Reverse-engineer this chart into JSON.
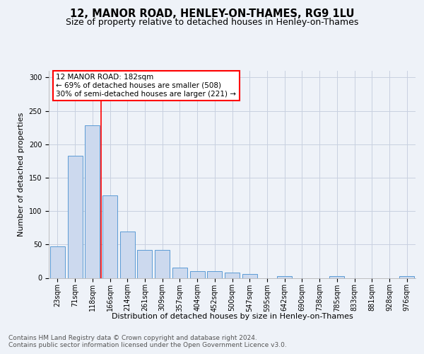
{
  "title": "12, MANOR ROAD, HENLEY-ON-THAMES, RG9 1LU",
  "subtitle": "Size of property relative to detached houses in Henley-on-Thames",
  "xlabel": "Distribution of detached houses by size in Henley-on-Thames",
  "ylabel": "Number of detached properties",
  "categories": [
    "23sqm",
    "71sqm",
    "118sqm",
    "166sqm",
    "214sqm",
    "261sqm",
    "309sqm",
    "357sqm",
    "404sqm",
    "452sqm",
    "500sqm",
    "547sqm",
    "595sqm",
    "642sqm",
    "690sqm",
    "738sqm",
    "785sqm",
    "833sqm",
    "881sqm",
    "928sqm",
    "976sqm"
  ],
  "values": [
    47,
    183,
    228,
    124,
    69,
    42,
    42,
    15,
    10,
    10,
    8,
    6,
    0,
    3,
    0,
    0,
    3,
    0,
    0,
    0,
    3
  ],
  "bar_color": "#ccd9ee",
  "bar_edge_color": "#5b9bd5",
  "grid_color": "#c8d0e0",
  "background_color": "#eef2f8",
  "vline_color": "red",
  "vline_position": 2.5,
  "annotation_text": "12 MANOR ROAD: 182sqm\n← 69% of detached houses are smaller (508)\n30% of semi-detached houses are larger (221) →",
  "footer_line1": "Contains HM Land Registry data © Crown copyright and database right 2024.",
  "footer_line2": "Contains public sector information licensed under the Open Government Licence v3.0.",
  "ylim": [
    0,
    310
  ],
  "yticks": [
    0,
    50,
    100,
    150,
    200,
    250,
    300
  ],
  "title_fontsize": 10.5,
  "subtitle_fontsize": 9,
  "axis_label_fontsize": 8,
  "tick_fontsize": 7,
  "annotation_fontsize": 7.5,
  "footer_fontsize": 6.5
}
